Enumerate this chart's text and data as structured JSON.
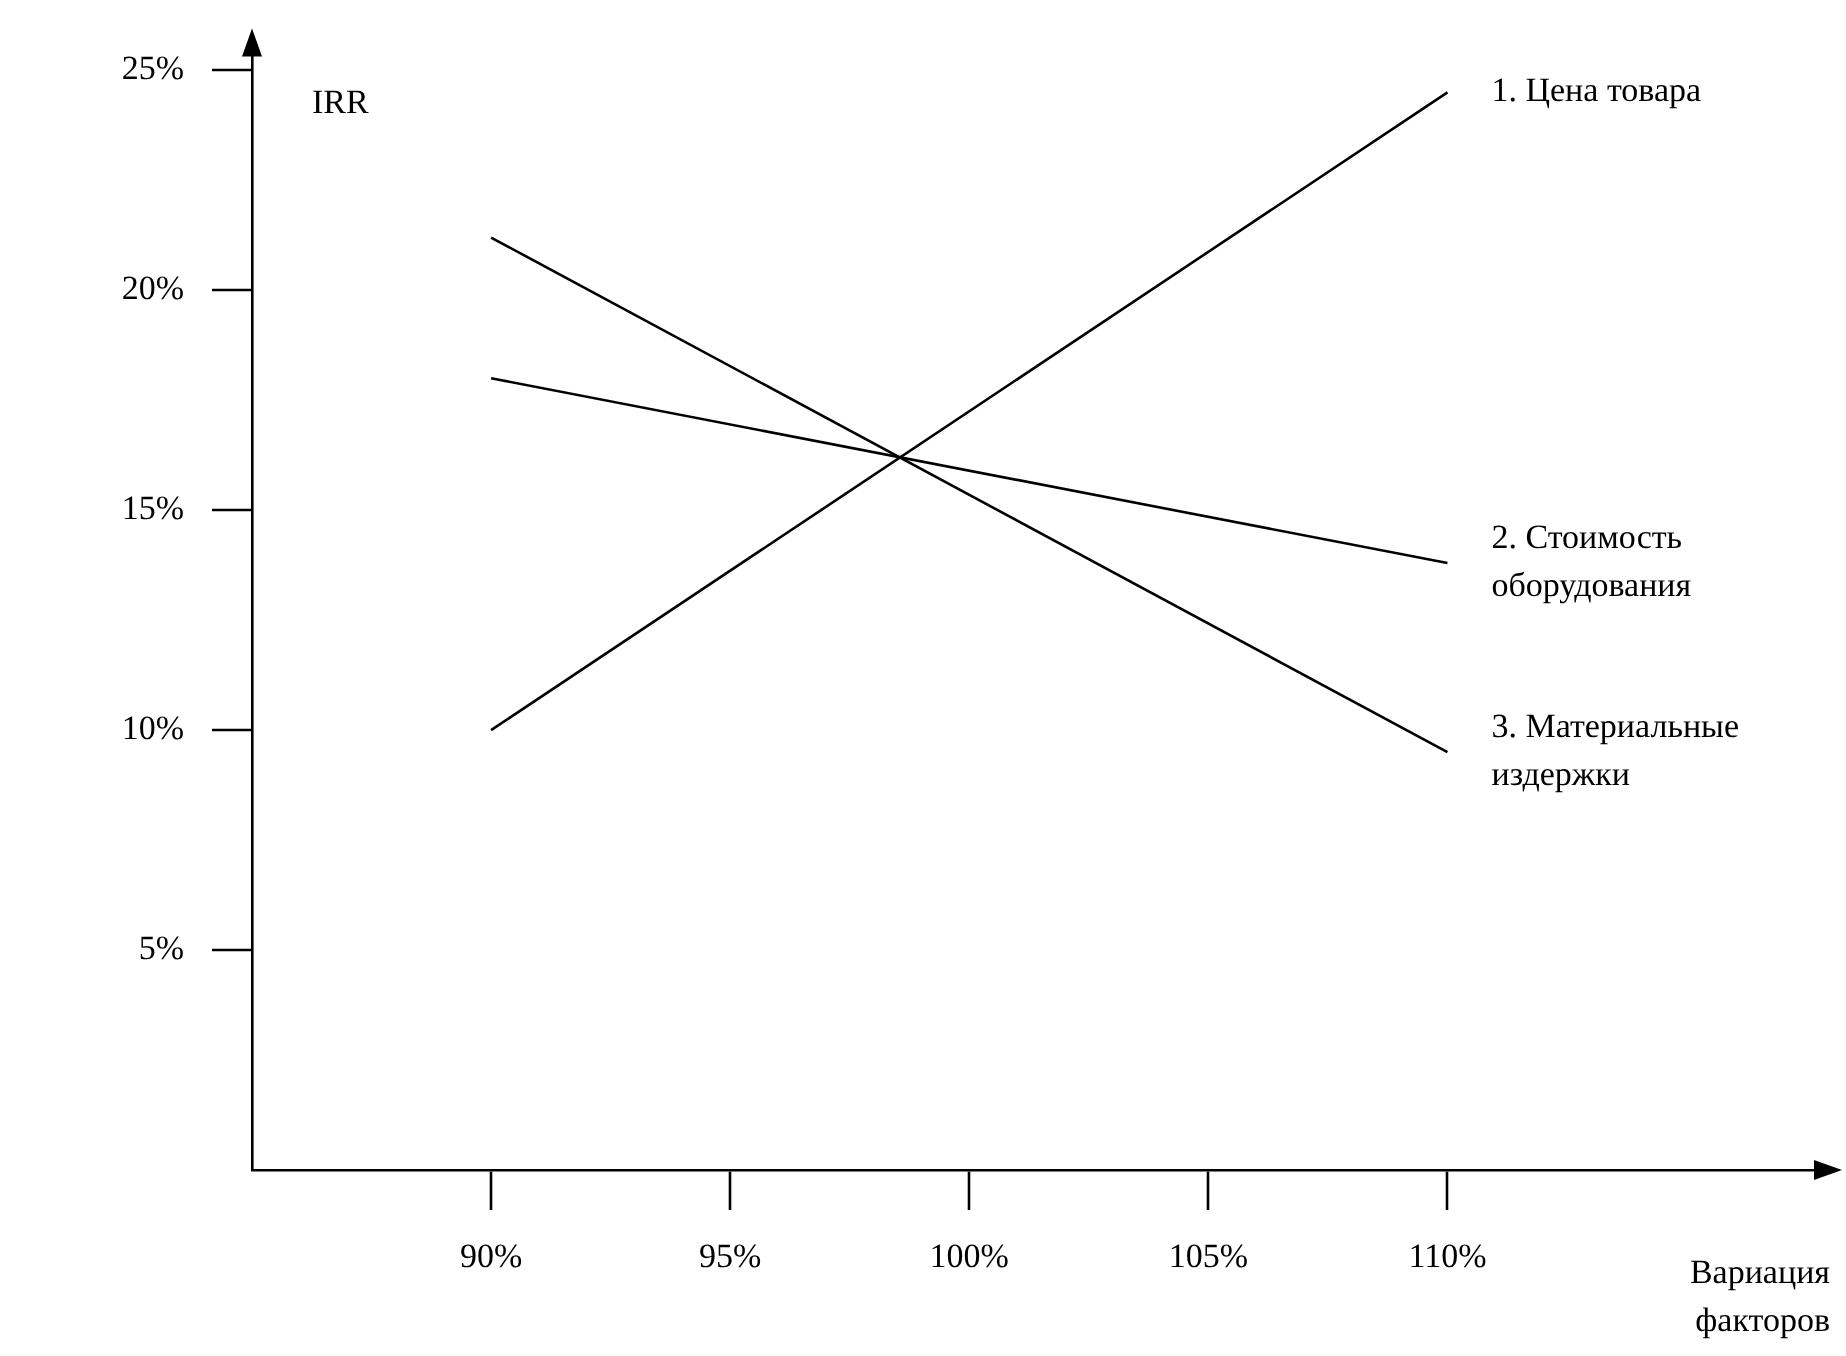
{
  "chart_data": {
    "type": "line",
    "xlabel": "Вариация факторов",
    "ylabel": "IRR",
    "x": [
      90,
      110
    ],
    "series": [
      {
        "name": "1. Цена товара",
        "color": "#000000",
        "values": [
          10,
          24.5
        ]
      },
      {
        "name": "2. Стоимость оборудования",
        "color": "#000000",
        "values": [
          18,
          13.8
        ]
      },
      {
        "name": "3. Материальные издержки",
        "color": "#000000",
        "values": [
          21.2,
          9.5
        ]
      }
    ],
    "xlim": [
      85,
      118
    ],
    "xticks": [
      {
        "value": 90,
        "label": "90%"
      },
      {
        "value": 95,
        "label": "95%"
      },
      {
        "value": 100,
        "label": "100%"
      },
      {
        "value": 105,
        "label": "105%"
      },
      {
        "value": 110,
        "label": "110%"
      }
    ],
    "ylim": [
      0,
      25.5
    ],
    "yticks": [
      {
        "value": 5,
        "label": "5%"
      },
      {
        "value": 10,
        "label": "10%"
      },
      {
        "value": 15,
        "label": "15%"
      },
      {
        "value": 20,
        "label": "20%"
      },
      {
        "value": 25,
        "label": "25%"
      }
    ],
    "marker": "none",
    "line_style": "solid"
  }
}
